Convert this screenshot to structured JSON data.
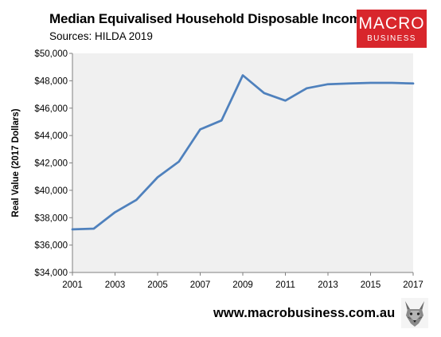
{
  "header": {
    "title": "Median Equivalised Household Disposable Income",
    "subtitle": "Sources: HILDA 2019"
  },
  "logo": {
    "line1": "MACRO",
    "line2": "BUSINESS",
    "color": "#d8262c"
  },
  "footer": {
    "url": "www.macrobusiness.com.au"
  },
  "chart_data": {
    "type": "line",
    "title": "Median Equivalised Household Disposable Income",
    "ylabel": "Real Value (2017 Dollars)",
    "xlabel": "",
    "xlim": [
      2001,
      2017
    ],
    "ylim": [
      34000,
      50000
    ],
    "x_ticks": [
      "2001",
      "2003",
      "2005",
      "2007",
      "2009",
      "2011",
      "2013",
      "2015",
      "2017"
    ],
    "y_ticks": [
      "$34,000",
      "$36,000",
      "$38,000",
      "$40,000",
      "$42,000",
      "$44,000",
      "$46,000",
      "$48,000",
      "$50,000"
    ],
    "x": [
      2001,
      2002,
      2003,
      2004,
      2005,
      2006,
      2007,
      2008,
      2009,
      2010,
      2011,
      2012,
      2013,
      2014,
      2015,
      2016,
      2017
    ],
    "series": [
      {
        "values": [
          37150,
          37200,
          38400,
          39300,
          40950,
          42100,
          44450,
          45100,
          48400,
          47100,
          46550,
          47450,
          47750,
          47800,
          47850,
          47850,
          47800
        ],
        "color": "#4f81bd"
      }
    ],
    "plot_background": "#f0f0f0",
    "grid": false,
    "legend": "none"
  }
}
